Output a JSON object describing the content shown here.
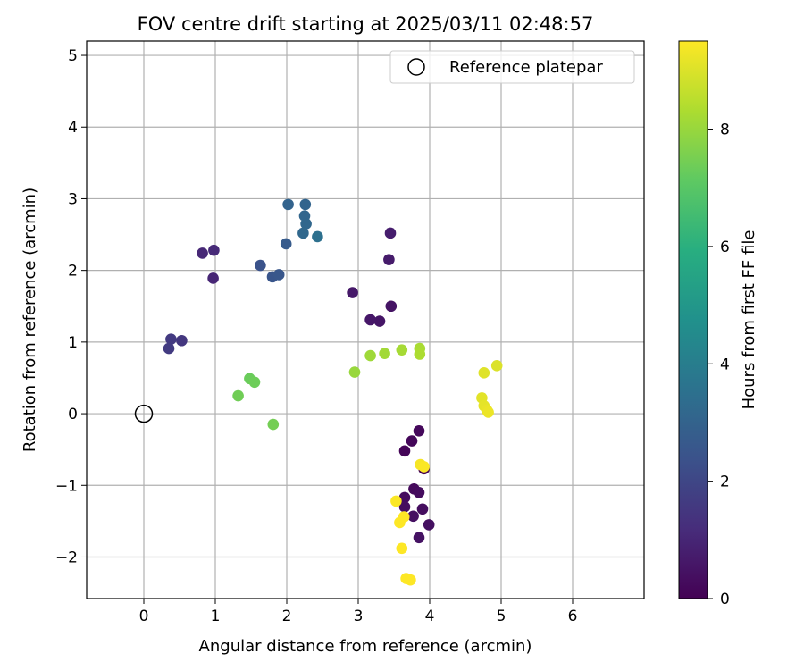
{
  "chart_data": {
    "type": "scatter",
    "title": "FOV centre drift starting at 2025/03/11 02:48:57",
    "xlabel": "Angular distance from reference (arcmin)",
    "ylabel": "Rotation from reference (arcmin)",
    "xlim": [
      -0.8,
      7.0
    ],
    "ylim": [
      -2.58,
      5.2
    ],
    "xticks": [
      0,
      1,
      2,
      3,
      4,
      5,
      6
    ],
    "yticks": [
      -2,
      -1,
      0,
      1,
      2,
      3,
      4,
      5
    ],
    "grid": true,
    "legend": {
      "position": "top-right",
      "entries": [
        "Reference platepar"
      ]
    },
    "colorbar": {
      "label": "Hours from first FF file",
      "range": [
        0,
        9.5
      ],
      "ticks": [
        0,
        2,
        4,
        6,
        8
      ],
      "colormap": "viridis"
    },
    "reference": {
      "x": 0,
      "y": 0,
      "label": "Reference platepar"
    },
    "points": [
      {
        "x": 3.92,
        "y": -0.77,
        "hours": 0.0
      },
      {
        "x": 3.65,
        "y": -0.52,
        "hours": 0.1
      },
      {
        "x": 3.75,
        "y": -0.38,
        "hours": 0.15
      },
      {
        "x": 3.85,
        "y": -0.24,
        "hours": 0.2
      },
      {
        "x": 3.78,
        "y": -1.05,
        "hours": 0.25
      },
      {
        "x": 3.85,
        "y": -1.1,
        "hours": 0.3
      },
      {
        "x": 3.65,
        "y": -1.17,
        "hours": 0.3
      },
      {
        "x": 3.9,
        "y": -1.33,
        "hours": 0.35
      },
      {
        "x": 3.65,
        "y": -1.3,
        "hours": 0.35
      },
      {
        "x": 3.77,
        "y": -1.43,
        "hours": 0.4
      },
      {
        "x": 3.99,
        "y": -1.55,
        "hours": 0.4
      },
      {
        "x": 3.85,
        "y": -1.73,
        "hours": 0.45
      },
      {
        "x": 3.46,
        "y": 1.5,
        "hours": 0.5
      },
      {
        "x": 3.3,
        "y": 1.29,
        "hours": 0.55
      },
      {
        "x": 3.17,
        "y": 1.31,
        "hours": 0.6
      },
      {
        "x": 2.92,
        "y": 1.69,
        "hours": 0.65
      },
      {
        "x": 3.43,
        "y": 2.15,
        "hours": 0.7
      },
      {
        "x": 3.45,
        "y": 2.52,
        "hours": 0.75
      },
      {
        "x": 0.97,
        "y": 1.89,
        "hours": 1.0
      },
      {
        "x": 0.82,
        "y": 2.24,
        "hours": 1.05
      },
      {
        "x": 0.98,
        "y": 2.28,
        "hours": 1.1
      },
      {
        "x": 0.53,
        "y": 1.02,
        "hours": 1.5
      },
      {
        "x": 0.38,
        "y": 1.04,
        "hours": 1.6
      },
      {
        "x": 0.35,
        "y": 0.91,
        "hours": 1.65
      },
      {
        "x": 1.63,
        "y": 2.07,
        "hours": 2.4
      },
      {
        "x": 1.8,
        "y": 1.91,
        "hours": 2.5
      },
      {
        "x": 1.89,
        "y": 1.94,
        "hours": 2.55
      },
      {
        "x": 1.99,
        "y": 2.37,
        "hours": 2.7
      },
      {
        "x": 2.02,
        "y": 2.92,
        "hours": 3.0
      },
      {
        "x": 2.26,
        "y": 2.92,
        "hours": 3.05
      },
      {
        "x": 2.25,
        "y": 2.76,
        "hours": 3.1
      },
      {
        "x": 2.27,
        "y": 2.65,
        "hours": 3.15
      },
      {
        "x": 2.23,
        "y": 2.52,
        "hours": 3.2
      },
      {
        "x": 2.43,
        "y": 2.47,
        "hours": 3.5
      },
      {
        "x": 1.48,
        "y": 0.49,
        "hours": 7.3
      },
      {
        "x": 1.55,
        "y": 0.44,
        "hours": 7.35
      },
      {
        "x": 1.32,
        "y": 0.25,
        "hours": 7.4
      },
      {
        "x": 1.81,
        "y": -0.15,
        "hours": 7.45
      },
      {
        "x": 2.95,
        "y": 0.58,
        "hours": 8.0
      },
      {
        "x": 3.17,
        "y": 0.81,
        "hours": 8.1
      },
      {
        "x": 3.37,
        "y": 0.84,
        "hours": 8.15
      },
      {
        "x": 3.61,
        "y": 0.89,
        "hours": 8.2
      },
      {
        "x": 3.86,
        "y": 0.91,
        "hours": 8.25
      },
      {
        "x": 3.86,
        "y": 0.83,
        "hours": 8.3
      },
      {
        "x": 4.94,
        "y": 0.67,
        "hours": 9.0
      },
      {
        "x": 4.76,
        "y": 0.57,
        "hours": 9.05
      },
      {
        "x": 4.73,
        "y": 0.22,
        "hours": 9.1
      },
      {
        "x": 4.76,
        "y": 0.11,
        "hours": 9.15
      },
      {
        "x": 4.8,
        "y": 0.05,
        "hours": 9.2
      },
      {
        "x": 4.82,
        "y": 0.02,
        "hours": 9.25
      },
      {
        "x": 3.87,
        "y": -0.71,
        "hours": 9.4
      },
      {
        "x": 3.92,
        "y": -0.74,
        "hours": 9.45
      },
      {
        "x": 3.53,
        "y": -1.22,
        "hours": 9.45
      },
      {
        "x": 3.64,
        "y": -1.44,
        "hours": 9.5
      },
      {
        "x": 3.58,
        "y": -1.52,
        "hours": 9.5
      },
      {
        "x": 3.61,
        "y": -1.88,
        "hours": 9.5
      },
      {
        "x": 3.67,
        "y": -2.3,
        "hours": 9.5
      },
      {
        "x": 3.73,
        "y": -2.32,
        "hours": 9.5
      }
    ]
  }
}
